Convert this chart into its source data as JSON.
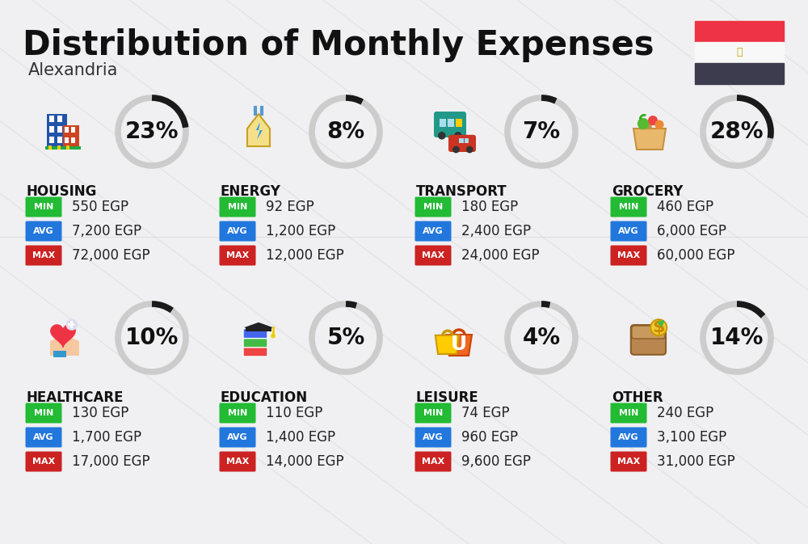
{
  "title": "Distribution of Monthly Expenses",
  "subtitle": "Alexandria",
  "bg_color": "#f0f0f2",
  "categories": [
    {
      "name": "HOUSING",
      "pct": 23,
      "min_val": "550 EGP",
      "avg_val": "7,200 EGP",
      "max_val": "72,000 EGP",
      "col": 0,
      "row": 0
    },
    {
      "name": "ENERGY",
      "pct": 8,
      "min_val": "92 EGP",
      "avg_val": "1,200 EGP",
      "max_val": "12,000 EGP",
      "col": 1,
      "row": 0
    },
    {
      "name": "TRANSPORT",
      "pct": 7,
      "min_val": "180 EGP",
      "avg_val": "2,400 EGP",
      "max_val": "24,000 EGP",
      "col": 2,
      "row": 0
    },
    {
      "name": "GROCERY",
      "pct": 28,
      "min_val": "460 EGP",
      "avg_val": "6,000 EGP",
      "max_val": "60,000 EGP",
      "col": 3,
      "row": 0
    },
    {
      "name": "HEALTHCARE",
      "pct": 10,
      "min_val": "130 EGP",
      "avg_val": "1,700 EGP",
      "max_val": "17,000 EGP",
      "col": 0,
      "row": 1
    },
    {
      "name": "EDUCATION",
      "pct": 5,
      "min_val": "110 EGP",
      "avg_val": "1,400 EGP",
      "max_val": "14,000 EGP",
      "col": 1,
      "row": 1
    },
    {
      "name": "LEISURE",
      "pct": 4,
      "min_val": "74 EGP",
      "avg_val": "960 EGP",
      "max_val": "9,600 EGP",
      "col": 2,
      "row": 1
    },
    {
      "name": "OTHER",
      "pct": 14,
      "min_val": "240 EGP",
      "avg_val": "3,100 EGP",
      "max_val": "31,000 EGP",
      "col": 3,
      "row": 1
    }
  ],
  "min_color": "#22bb33",
  "avg_color": "#2277dd",
  "max_color": "#cc2222",
  "gauge_bg_color": "#cccccc",
  "gauge_fg_color": "#1a1a1a",
  "title_fontsize": 30,
  "subtitle_fontsize": 15,
  "cat_fontsize": 12,
  "pct_fontsize": 20,
  "val_fontsize": 12,
  "badge_label_fontsize": 8
}
